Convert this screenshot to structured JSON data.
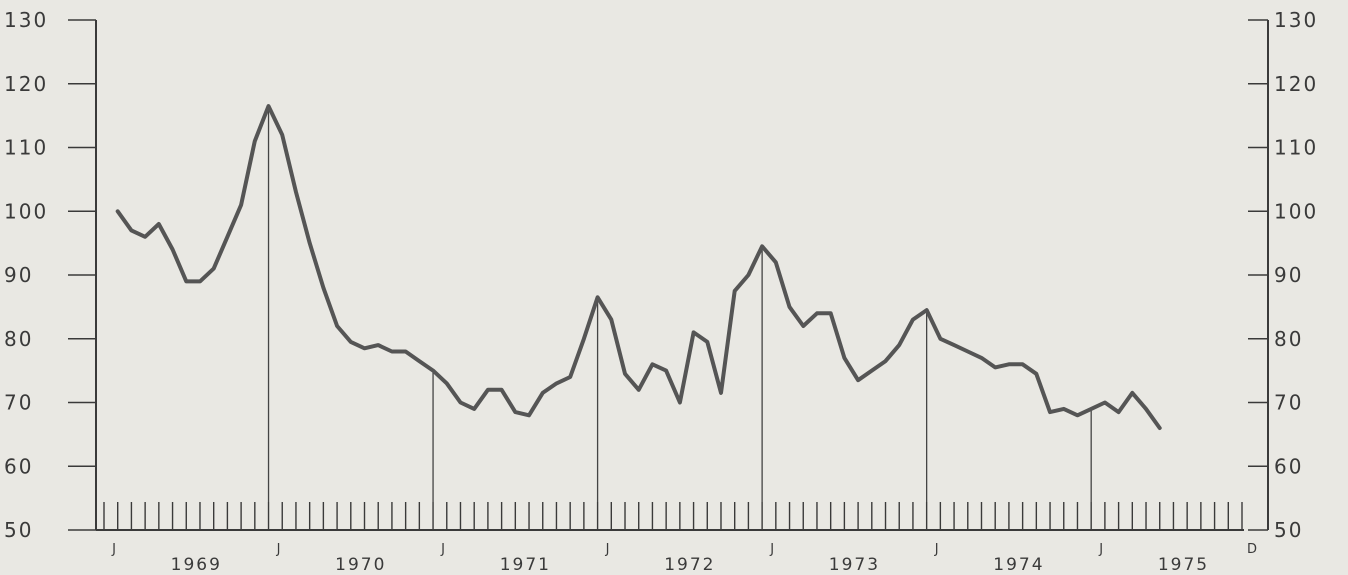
{
  "chart_data": {
    "type": "line",
    "title": "",
    "xlabel": "",
    "ylabel": "",
    "ylim": [
      50,
      130
    ],
    "yticks": [
      50,
      60,
      70,
      80,
      90,
      100,
      110,
      120,
      130
    ],
    "y_axes": "left and right",
    "grid": false,
    "year_labels": [
      "1969",
      "1970",
      "1971",
      "1972",
      "1973",
      "1974",
      "1975"
    ],
    "month_markers": [
      {
        "label": "J",
        "x": 0
      },
      {
        "label": "J",
        "x": 12
      },
      {
        "label": "J",
        "x": 24
      },
      {
        "label": "J",
        "x": 36
      },
      {
        "label": "J",
        "x": 48
      },
      {
        "label": "J",
        "x": 60
      },
      {
        "label": "J",
        "x": 72
      },
      {
        "label": "D",
        "x": 83
      }
    ],
    "x_range": [
      0,
      83
    ],
    "series": [
      {
        "values": [
          [
            1,
            100
          ],
          [
            2,
            97
          ],
          [
            3,
            96
          ],
          [
            4,
            98
          ],
          [
            5,
            94
          ],
          [
            6,
            89
          ],
          [
            7,
            89
          ],
          [
            8,
            91
          ],
          [
            9,
            96
          ],
          [
            10,
            101
          ],
          [
            11,
            111
          ],
          [
            12,
            116.5
          ],
          [
            13,
            112
          ],
          [
            14,
            103
          ],
          [
            15,
            95
          ],
          [
            16,
            88
          ],
          [
            17,
            82
          ],
          [
            18,
            79.5
          ],
          [
            19,
            78.5
          ],
          [
            20,
            79
          ],
          [
            21,
            78
          ],
          [
            22,
            78
          ],
          [
            23,
            76.5
          ],
          [
            24,
            75
          ],
          [
            25,
            73
          ],
          [
            26,
            70
          ],
          [
            27,
            69
          ],
          [
            28,
            72
          ],
          [
            29,
            72
          ],
          [
            30,
            68.5
          ],
          [
            31,
            68
          ],
          [
            32,
            71.5
          ],
          [
            33,
            73
          ],
          [
            34,
            74
          ],
          [
            35,
            80
          ],
          [
            36,
            86.5
          ],
          [
            37,
            83
          ],
          [
            38,
            74.5
          ],
          [
            39,
            72
          ],
          [
            40,
            76
          ],
          [
            41,
            75
          ],
          [
            42,
            70
          ],
          [
            43,
            81
          ],
          [
            44,
            79.5
          ],
          [
            45,
            71.5
          ],
          [
            46,
            87.5
          ],
          [
            47,
            90
          ],
          [
            48,
            94.5
          ],
          [
            49,
            92
          ],
          [
            50,
            85
          ],
          [
            51,
            82
          ],
          [
            52,
            84
          ],
          [
            53,
            84
          ],
          [
            54,
            77
          ],
          [
            55,
            73.5
          ],
          [
            56,
            75
          ],
          [
            57,
            76.5
          ],
          [
            58,
            79
          ],
          [
            59,
            83
          ],
          [
            60,
            84.5
          ],
          [
            61,
            80
          ],
          [
            62,
            79
          ],
          [
            63,
            78
          ],
          [
            64,
            77
          ],
          [
            65,
            75.5
          ],
          [
            66,
            76
          ],
          [
            67,
            76
          ],
          [
            68,
            74.5
          ],
          [
            69,
            68.5
          ],
          [
            70,
            69
          ],
          [
            71,
            68
          ],
          [
            72,
            69
          ],
          [
            73,
            70
          ],
          [
            74,
            68.5
          ],
          [
            75,
            71.5
          ],
          [
            76,
            69
          ],
          [
            77,
            66
          ]
        ]
      }
    ]
  }
}
